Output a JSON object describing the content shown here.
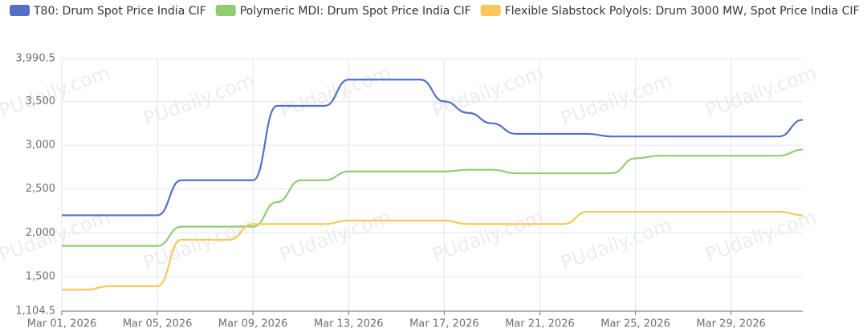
{
  "chart_data": {
    "type": "line",
    "watermark": "PUdaily.com",
    "categories": [
      "Mar 01, 2026",
      null,
      null,
      null,
      "Mar 05, 2026",
      null,
      null,
      null,
      "Mar 09, 2026",
      null,
      null,
      null,
      "Mar 13, 2026",
      null,
      null,
      null,
      "Mar 17, 2026",
      null,
      null,
      null,
      "Mar 21, 2026",
      null,
      null,
      null,
      "Mar 25, 2026",
      null,
      null,
      null,
      "Mar 29, 2026",
      null,
      null,
      null
    ],
    "series": [
      {
        "name": "T80: Drum  Spot Price India CIF",
        "color": "#5470c6",
        "values": [
          2200,
          2200,
          2200,
          2200,
          2200,
          2600,
          2600,
          2600,
          2600,
          3450,
          3450,
          3450,
          3750,
          3750,
          3750,
          3750,
          3500,
          3370,
          3250,
          3130,
          3130,
          3130,
          3130,
          3100,
          3100,
          3100,
          3100,
          3100,
          3100,
          3100,
          3100,
          3290
        ]
      },
      {
        "name": "Polymeric MDI: Drum  Spot Price India CIF",
        "color": "#91cc75",
        "values": [
          1850,
          1850,
          1850,
          1850,
          1850,
          2070,
          2070,
          2070,
          2070,
          2350,
          2600,
          2600,
          2700,
          2700,
          2700,
          2700,
          2700,
          2720,
          2720,
          2680,
          2680,
          2680,
          2680,
          2680,
          2850,
          2880,
          2880,
          2880,
          2880,
          2880,
          2880,
          2950
        ]
      },
      {
        "name": "Flexible Slabstock Polyols: Drum 3000 MW, Spot Price India CIF",
        "color": "#fac858",
        "values": [
          1350,
          1350,
          1390,
          1390,
          1390,
          1920,
          1920,
          1920,
          2100,
          2100,
          2100,
          2100,
          2140,
          2140,
          2140,
          2140,
          2140,
          2100,
          2100,
          2100,
          2100,
          2100,
          2240,
          2240,
          2240,
          2240,
          2240,
          2240,
          2240,
          2240,
          2240,
          2200
        ]
      }
    ],
    "ylim": [
      1104.5,
      3990.5
    ],
    "yticks": [
      {
        "value": 1104.5,
        "label": "1,104.5"
      },
      {
        "value": 1500,
        "label": "1,500"
      },
      {
        "value": 2000,
        "label": "2,000"
      },
      {
        "value": 2500,
        "label": "2,500"
      },
      {
        "value": 3000,
        "label": "3,000"
      },
      {
        "value": 3500,
        "label": "3,500"
      },
      {
        "value": 3990.5,
        "label": "3,990.5"
      }
    ],
    "grid": true
  }
}
